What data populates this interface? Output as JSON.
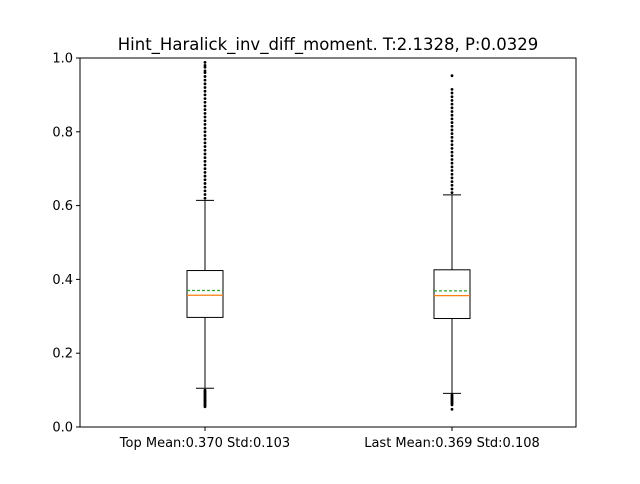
{
  "chart_data": {
    "type": "boxplot",
    "title": "Hint_Haralick_inv_diff_moment. T:2.1328, P:0.0329",
    "xlabel": "",
    "ylabel": "",
    "ylim": [
      0.0,
      1.0
    ],
    "yticks": [
      0.0,
      0.2,
      0.4,
      0.6,
      0.8,
      1.0
    ],
    "ytick_labels": [
      "0.0",
      "0.2",
      "0.4",
      "0.6",
      "0.8",
      "1.0"
    ],
    "grid": false,
    "show_mean_line": true,
    "colors": {
      "box": "#000000",
      "median": "#ff7f0e",
      "mean": "#2ca02c",
      "flier": "#000000"
    },
    "groups": [
      {
        "label": "Top Mean:0.370 Std:0.103",
        "whisker_low": 0.105,
        "q1": 0.297,
        "median": 0.357,
        "mean": 0.37,
        "q3": 0.424,
        "whisker_high": 0.614,
        "fliers_low": [
          0.055,
          0.058,
          0.061,
          0.064,
          0.067,
          0.07,
          0.073,
          0.076,
          0.079,
          0.082,
          0.085,
          0.088,
          0.091,
          0.094,
          0.097,
          0.1
        ],
        "fliers_high": [
          0.62,
          0.63,
          0.64,
          0.65,
          0.66,
          0.67,
          0.68,
          0.69,
          0.7,
          0.71,
          0.72,
          0.73,
          0.74,
          0.75,
          0.76,
          0.77,
          0.78,
          0.79,
          0.8,
          0.81,
          0.82,
          0.83,
          0.84,
          0.85,
          0.86,
          0.87,
          0.88,
          0.89,
          0.9,
          0.91,
          0.92,
          0.93,
          0.94,
          0.95,
          0.96,
          0.965,
          0.975,
          0.98,
          0.988
        ]
      },
      {
        "label": "Last Mean:0.369 Std:0.108",
        "whisker_low": 0.091,
        "q1": 0.294,
        "median": 0.356,
        "mean": 0.369,
        "q3": 0.426,
        "whisker_high": 0.629,
        "fliers_low": [
          0.048,
          0.06,
          0.063,
          0.066,
          0.069,
          0.072,
          0.075,
          0.078,
          0.081,
          0.084,
          0.087
        ],
        "fliers_high": [
          0.635,
          0.645,
          0.655,
          0.665,
          0.675,
          0.685,
          0.695,
          0.705,
          0.715,
          0.725,
          0.735,
          0.745,
          0.755,
          0.765,
          0.775,
          0.785,
          0.795,
          0.805,
          0.815,
          0.825,
          0.835,
          0.845,
          0.855,
          0.865,
          0.875,
          0.885,
          0.895,
          0.905,
          0.915,
          0.952
        ]
      }
    ]
  }
}
